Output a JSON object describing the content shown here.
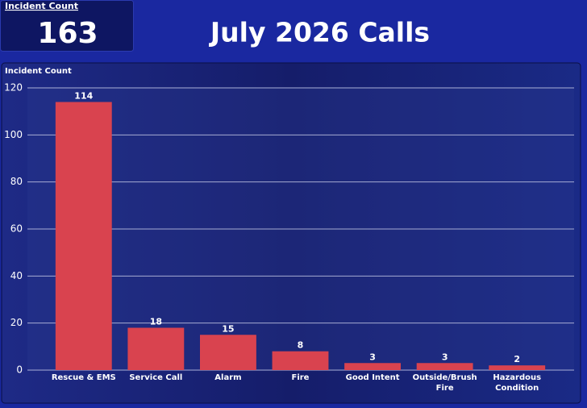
{
  "card": {
    "label": "Incident Count",
    "value": 163
  },
  "title": "July 2026 Calls",
  "chart_data": {
    "type": "bar",
    "title": "Incident Count",
    "categories": [
      "Rescue & EMS",
      "Service Call",
      "Alarm",
      "Fire",
      "Good Intent",
      "Outside/Brush Fire",
      "Hazardous Condition"
    ],
    "values": [
      114,
      18,
      15,
      8,
      3,
      3,
      2
    ],
    "color": "#d9434f",
    "ylim": [
      0,
      120
    ],
    "yticks": [
      0,
      20,
      40,
      60,
      80,
      100,
      120
    ],
    "grid": true
  }
}
